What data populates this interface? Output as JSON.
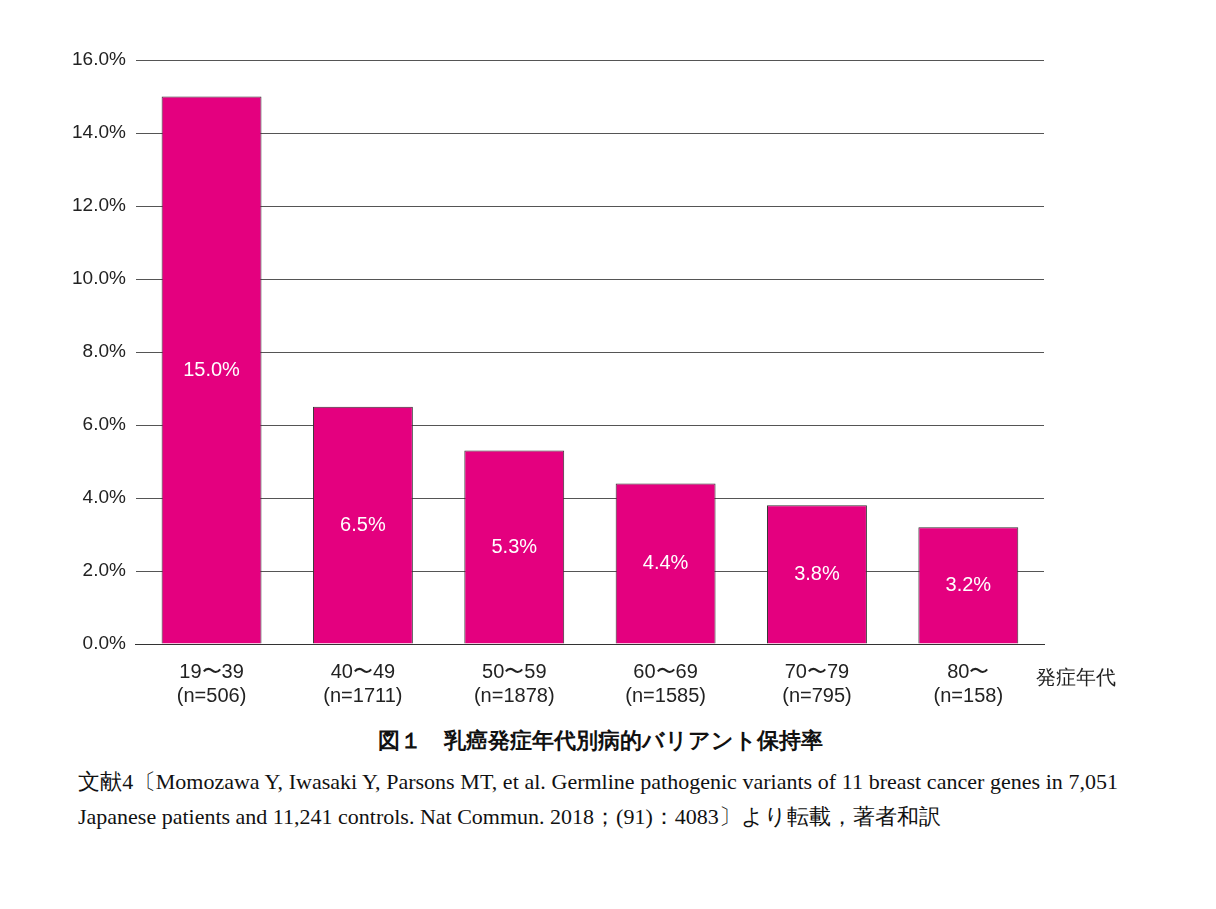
{
  "chart_data": {
    "type": "bar",
    "title": "図１　乳癌発症年代別病的バリアント保持率",
    "xlabel": "発症年代",
    "source": "文献4〔Momozawa Y, Iwasaki Y, Parsons MT, et al. Germline pathogenic variants of 11 breast cancer genes in 7,051 Japanese patients and 11,241 controls. Nat Commun. 2018；(91)：4083〕より転載，著者和訳",
    "categories": [
      [
        "19〜39",
        "(n=506)"
      ],
      [
        "40〜49",
        "(n=1711)"
      ],
      [
        "50〜59",
        "(n=1878)"
      ],
      [
        "60〜69",
        "(n=1585)"
      ],
      [
        "70〜79",
        "(n=795)"
      ],
      [
        "80〜",
        "(n=158)"
      ]
    ],
    "values": [
      15.0,
      6.5,
      5.3,
      4.4,
      3.8,
      3.2
    ],
    "value_labels": [
      "15.0%",
      "6.5%",
      "5.3%",
      "4.4%",
      "3.8%",
      "3.2%"
    ],
    "data_labels": true,
    "color": "#e4007f",
    "ylim": [
      0,
      16
    ],
    "yticks": [
      {
        "value": 0,
        "label": "0.0%"
      },
      {
        "value": 2,
        "label": "2.0%"
      },
      {
        "value": 4,
        "label": "4.0%"
      },
      {
        "value": 6,
        "label": "6.0%"
      },
      {
        "value": 8,
        "label": "8.0%"
      },
      {
        "value": 10,
        "label": "10.0%"
      },
      {
        "value": 12,
        "label": "12.0%"
      },
      {
        "value": 14,
        "label": "14.0%"
      },
      {
        "value": 16,
        "label": "16.0%"
      }
    ],
    "grid": true
  }
}
